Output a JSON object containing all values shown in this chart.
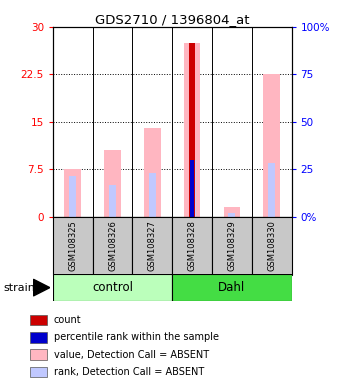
{
  "title": "GDS2710 / 1396804_at",
  "samples": [
    "GSM108325",
    "GSM108326",
    "GSM108327",
    "GSM108328",
    "GSM108329",
    "GSM108330"
  ],
  "groups": [
    "control",
    "control",
    "control",
    "Dahl",
    "Dahl",
    "Dahl"
  ],
  "ylim_left": [
    0,
    30
  ],
  "ylim_right": [
    0,
    100
  ],
  "yticks_left": [
    0,
    7.5,
    15,
    22.5,
    30
  ],
  "yticks_right": [
    0,
    25,
    50,
    75,
    100
  ],
  "ytick_labels_left": [
    "0",
    "7.5",
    "15",
    "22.5",
    "30"
  ],
  "ytick_labels_right": [
    "0%",
    "25",
    "50",
    "75",
    "100%"
  ],
  "value_bars": [
    7.5,
    10.5,
    14.0,
    27.5,
    1.5,
    22.5
  ],
  "rank_bars": [
    6.5,
    5.0,
    7.0,
    9.0,
    0.7,
    8.5
  ],
  "count_bar_idx": 3,
  "count_bar_val": 27.5,
  "percentile_bar_val": 9.0,
  "value_color": "#FFB6C1",
  "rank_color": "#C0C8FF",
  "count_color": "#CC0000",
  "percentile_color": "#0000CC",
  "bg_color_gray": "#C8C8C8",
  "group_color_control": "#BBFFBB",
  "group_color_dahl": "#44DD44",
  "value_bar_width": 0.42,
  "rank_bar_width": 0.18,
  "count_bar_width": 0.15,
  "percentile_bar_width": 0.1,
  "legend_items": [
    [
      "count",
      "#CC0000"
    ],
    [
      "percentile rank within the sample",
      "#0000CC"
    ],
    [
      "value, Detection Call = ABSENT",
      "#FFB6C1"
    ],
    [
      "rank, Detection Call = ABSENT",
      "#C0C8FF"
    ]
  ]
}
